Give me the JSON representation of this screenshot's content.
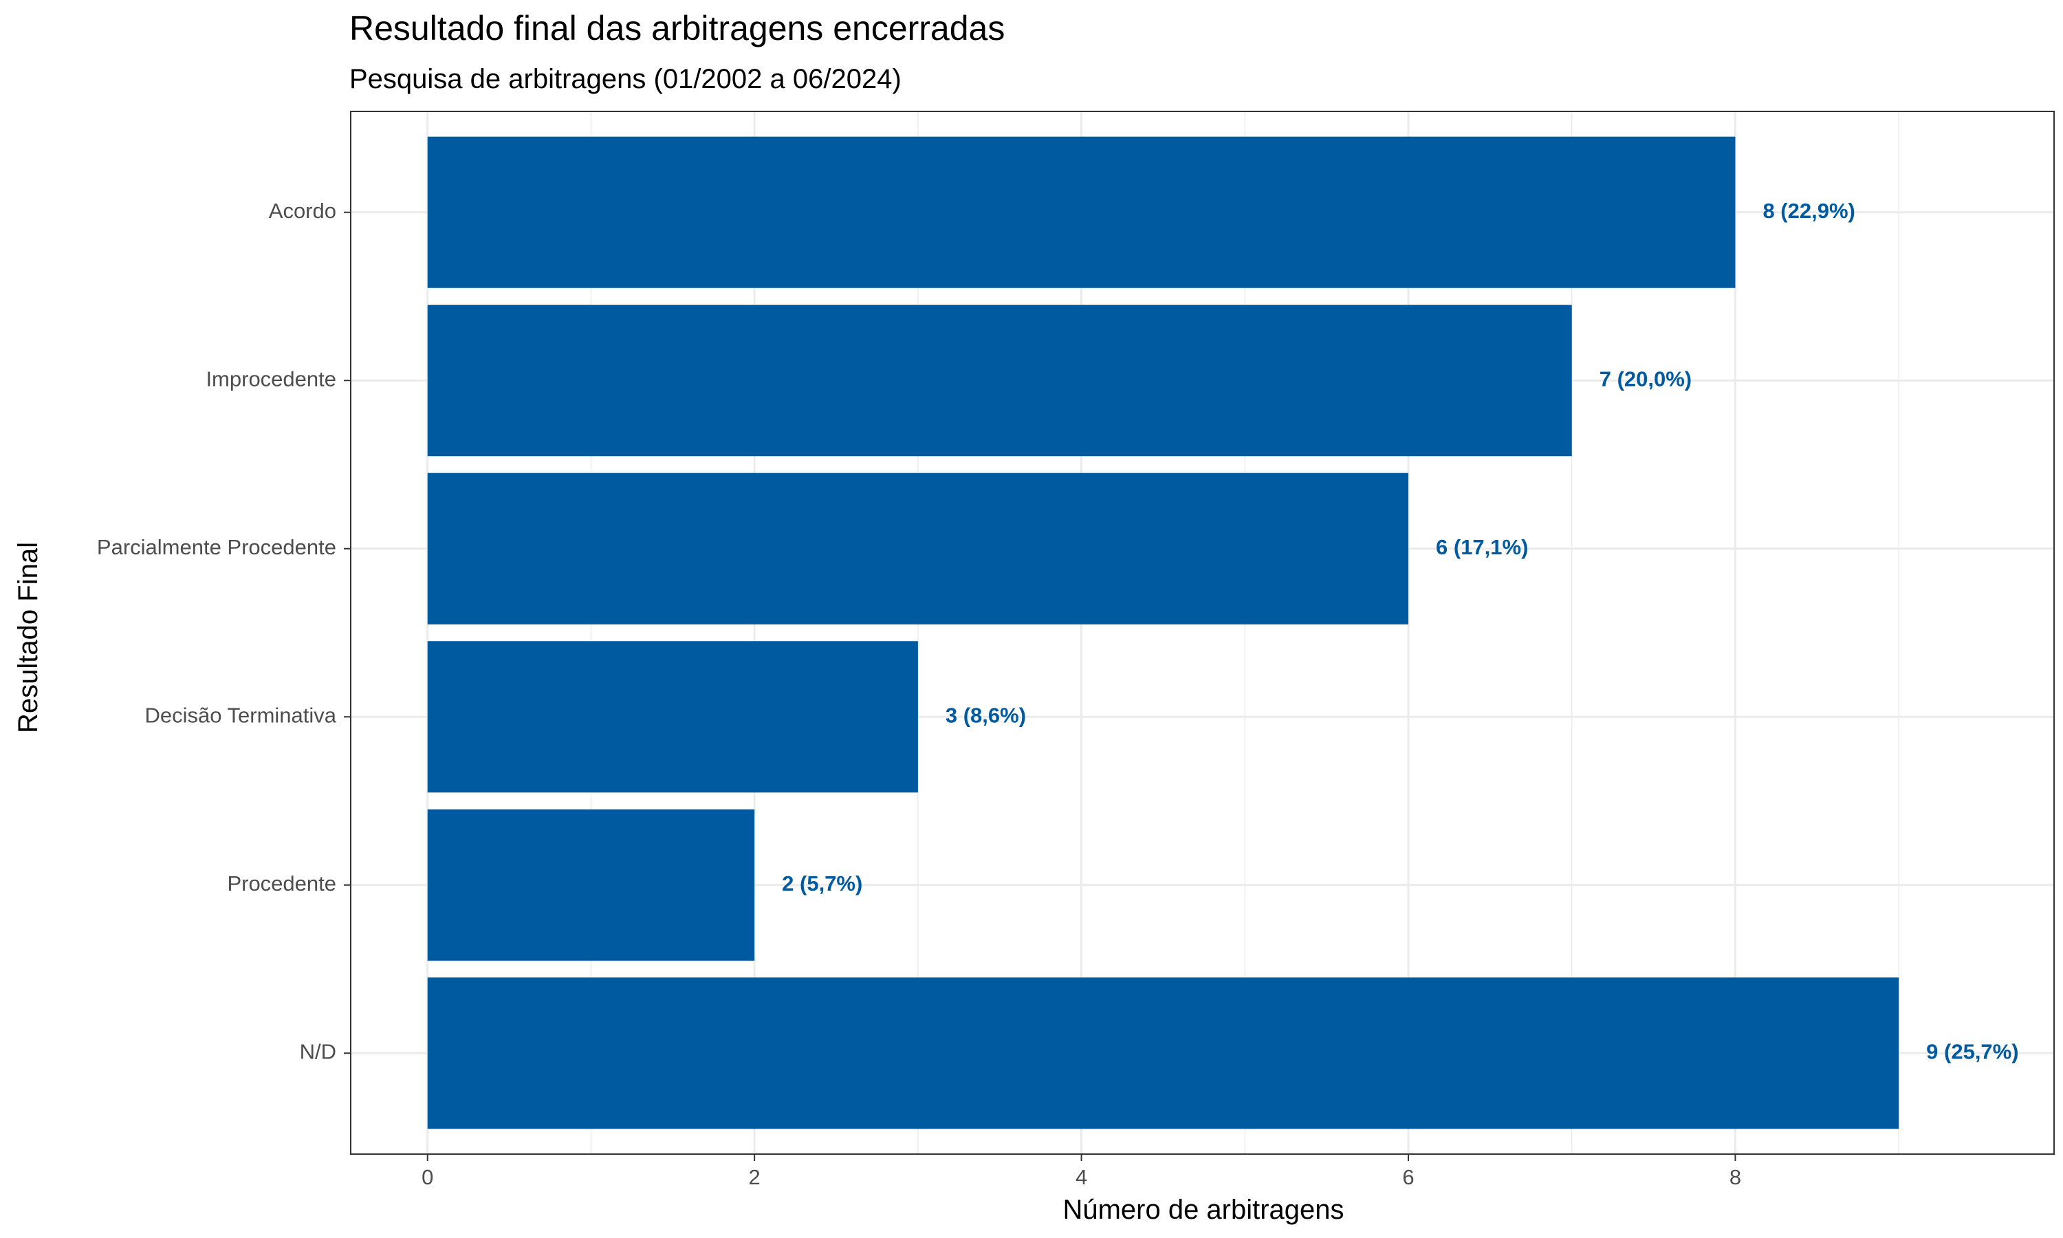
{
  "chart_data": {
    "type": "bar",
    "orientation": "horizontal",
    "title": "Resultado final das arbitragens encerradas",
    "subtitle": "Pesquisa de arbitragens (01/2002 a 06/2024)",
    "xlabel": "Número de arbitragens",
    "ylabel": "Resultado Final",
    "categories": [
      "Acordo",
      "Improcedente",
      "Parcialmente Procedente",
      "Decisão Terminativa",
      "Procedente",
      "N/D"
    ],
    "values": [
      8,
      7,
      6,
      3,
      2,
      9
    ],
    "data_labels": [
      "8 (22,9%)",
      "7 (20,0%)",
      "6 (17,1%)",
      "3 (8,6%)",
      "2 (5,7%)",
      "9 (25,7%)"
    ],
    "xlim": [
      -0.47,
      9.95
    ],
    "xticks": [
      0,
      2,
      4,
      6,
      8
    ],
    "xtick_labels": [
      "0",
      "2",
      "4",
      "6",
      "8"
    ],
    "grid": true,
    "legend": "none",
    "colors": {
      "bar": "#005A9F",
      "label": "#005A9F",
      "grid": "#EBEBEB",
      "panel_border": "#333333"
    }
  }
}
